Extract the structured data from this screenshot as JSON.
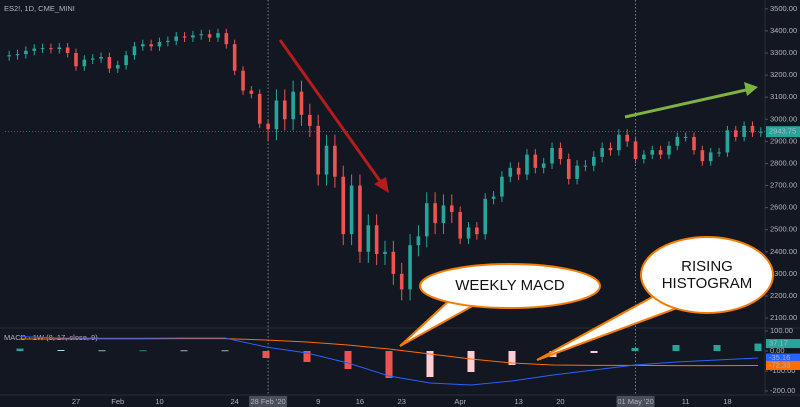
{
  "chart_data": [
    {
      "type": "candlestick",
      "title": "ES2!, 1D, CME_MINI",
      "categories": [
        null,
        null,
        null,
        null,
        null,
        null,
        null,
        null,
        "27",
        null,
        null,
        null,
        null,
        "Feb",
        null,
        null,
        null,
        null,
        "10",
        null,
        null,
        null,
        null,
        null,
        null,
        null,
        null,
        "24",
        null,
        null,
        null,
        "28 Feb '20",
        null,
        null,
        null,
        null,
        null,
        "9",
        null,
        null,
        null,
        null,
        "16",
        null,
        null,
        null,
        null,
        "23",
        null,
        null,
        null,
        null,
        null,
        null,
        "Apr",
        null,
        null,
        null,
        null,
        null,
        null,
        "13",
        null,
        null,
        null,
        null,
        "20",
        null,
        null,
        null,
        null,
        null,
        null,
        null,
        null,
        "01 May '20",
        null,
        null,
        null,
        null,
        null,
        "11",
        null,
        null,
        null,
        null,
        "18",
        null,
        null,
        null,
        null
      ],
      "open": [
        3285,
        3290,
        3295,
        3310,
        3320,
        3322,
        3318,
        3325,
        3300,
        3240,
        3270,
        3275,
        3282,
        3230,
        3245,
        3290,
        3330,
        3340,
        3330,
        3350,
        3355,
        3375,
        3370,
        3380,
        3385,
        3370,
        3390,
        3340,
        3220,
        3130,
        3115,
        2980,
        2955,
        3085,
        3000,
        3125,
        3020,
        2970,
        2750,
        2880,
        2740,
        2480,
        2700,
        2400,
        2520,
        2390,
        2400,
        2300,
        2230,
        2430,
        2470,
        2620,
        2530,
        2610,
        2580,
        2460,
        2510,
        2480,
        2640,
        2650,
        2740,
        2780,
        2750,
        2840,
        2780,
        2800,
        2870,
        2820,
        2730,
        2790,
        2790,
        2830,
        2870,
        2860,
        2930,
        2900,
        2820,
        2840,
        2860,
        2840,
        2880,
        2920,
        2920,
        2860,
        2810,
        2850,
        2850,
        2950,
        2920,
        2970,
        2940
      ],
      "high": [
        3310,
        3315,
        3330,
        3340,
        3342,
        3342,
        3345,
        3345,
        3320,
        3290,
        3295,
        3302,
        3302,
        3265,
        3310,
        3350,
        3360,
        3360,
        3370,
        3375,
        3395,
        3395,
        3400,
        3405,
        3405,
        3410,
        3410,
        3360,
        3240,
        3150,
        3135,
        3000,
        3135,
        3135,
        3175,
        3175,
        3070,
        3020,
        2930,
        2930,
        2790,
        2750,
        2750,
        2570,
        2570,
        2450,
        2450,
        2350,
        2480,
        2520,
        2670,
        2670,
        2660,
        2660,
        2605,
        2535,
        2535,
        2665,
        2675,
        2765,
        2805,
        2805,
        2865,
        2865,
        2825,
        2895,
        2895,
        2845,
        2815,
        2815,
        2855,
        2895,
        2895,
        2955,
        2955,
        2920,
        2860,
        2880,
        2880,
        2900,
        2940,
        2940,
        2940,
        2880,
        2870,
        2870,
        2970,
        2970,
        2990,
        2990,
        2963.75
      ],
      "low": [
        3265,
        3270,
        3275,
        3290,
        3300,
        3298,
        3298,
        3280,
        3220,
        3220,
        3250,
        3255,
        3210,
        3210,
        3225,
        3270,
        3310,
        3310,
        3310,
        3330,
        3335,
        3350,
        3350,
        3360,
        3350,
        3350,
        3320,
        3200,
        3110,
        3095,
        2960,
        2900,
        2905,
        2950,
        2950,
        2970,
        2920,
        2700,
        2700,
        2690,
        2430,
        2430,
        2350,
        2350,
        2340,
        2340,
        2250,
        2180,
        2180,
        2380,
        2420,
        2480,
        2480,
        2530,
        2435,
        2435,
        2455,
        2455,
        2615,
        2625,
        2715,
        2725,
        2725,
        2755,
        2755,
        2775,
        2795,
        2705,
        2705,
        2765,
        2765,
        2805,
        2835,
        2835,
        2875,
        2800,
        2800,
        2820,
        2820,
        2820,
        2860,
        2900,
        2840,
        2790,
        2790,
        2830,
        2830,
        2900,
        2900,
        2920,
        2920
      ],
      "close": [
        3290,
        3295,
        3310,
        3320,
        3322,
        3318,
        3325,
        3300,
        3240,
        3270,
        3275,
        3282,
        3230,
        3245,
        3290,
        3330,
        3340,
        3330,
        3350,
        3355,
        3375,
        3370,
        3380,
        3385,
        3370,
        3390,
        3340,
        3220,
        3130,
        3115,
        2980,
        2955,
        3085,
        3000,
        3125,
        3020,
        2970,
        2750,
        2880,
        2740,
        2480,
        2700,
        2400,
        2520,
        2390,
        2400,
        2300,
        2230,
        2430,
        2470,
        2620,
        2530,
        2610,
        2580,
        2460,
        2510,
        2480,
        2640,
        2650,
        2740,
        2780,
        2750,
        2840,
        2780,
        2800,
        2870,
        2820,
        2730,
        2790,
        2790,
        2830,
        2870,
        2860,
        2930,
        2900,
        2820,
        2840,
        2860,
        2840,
        2880,
        2920,
        2920,
        2860,
        2810,
        2850,
        2850,
        2950,
        2920,
        2970,
        2940,
        2943.75
      ],
      "up_color": "#26a69a",
      "down_color": "#ef5350",
      "ylim": [
        2055,
        3540
      ],
      "yticks": [
        {
          "value": 2100,
          "label": "2100.00"
        },
        {
          "value": 2200,
          "label": "2200.00"
        },
        {
          "value": 2300,
          "label": "2300.00"
        },
        {
          "value": 2400,
          "label": "2400.00"
        },
        {
          "value": 2500,
          "label": "2500.00"
        },
        {
          "value": 2600,
          "label": "2600.00"
        },
        {
          "value": 2700,
          "label": "2700.00"
        },
        {
          "value": 2800,
          "label": "2800.00"
        },
        {
          "value": 2900,
          "label": "2900.00"
        },
        {
          "value": 3000,
          "label": "3000.00"
        },
        {
          "value": 3100,
          "label": "3100.00"
        },
        {
          "value": 3200,
          "label": "3200.00"
        },
        {
          "value": 3300,
          "label": "3300.00"
        },
        {
          "value": 3400,
          "label": "3400.00"
        },
        {
          "value": 3500,
          "label": "3500.00"
        }
      ],
      "vlines": [
        31,
        75
      ],
      "annotations": [
        "WEEKLY MACD",
        "RISING HISTOGRAM"
      ]
    },
    {
      "type": "macd",
      "title": "MACD · 1W (8, 17, close, 9)",
      "histogram": {
        "values": [
          12,
          5,
          3,
          3,
          3,
          3,
          -35,
          -55,
          -90,
          -135,
          -130,
          -105,
          -70,
          -30,
          -10,
          15,
          30,
          30,
          37.17
        ],
        "colors": [
          "#26a69a",
          "#b2dfdb",
          "#b2dfdb",
          "#26a69a",
          "#b2dfdb",
          "#b2dfdb",
          "#ef5350",
          "#ef5350",
          "#ef5350",
          "#ef5350",
          "#ffcdd2",
          "#ffcdd2",
          "#ffcdd2",
          "#ffcdd2",
          "#ffcdd2",
          "#26a69a",
          "#26a69a",
          "#26a69a",
          "#26a69a"
        ]
      },
      "macd": {
        "color": "#2962ff",
        "values": [
          72,
          65,
          64,
          64,
          65,
          65,
          20,
          -10,
          -60,
          -125,
          -160,
          -170,
          -150,
          -120,
          -95,
          -70,
          -55,
          -45,
          -35.16
        ]
      },
      "signal": {
        "color": "#ff6d00",
        "values": [
          60,
          60,
          61,
          61,
          62,
          62,
          55,
          45,
          30,
          10,
          -15,
          -40,
          -60,
          -70,
          -72,
          -72,
          -73,
          -73,
          -72.33
        ]
      },
      "ylim": [
        -220,
        115
      ],
      "yticks": [
        {
          "value": 100,
          "label": "100.00"
        },
        {
          "value": 0,
          "label": "0.00"
        },
        {
          "value": -100,
          "label": "-100.00"
        },
        {
          "value": -200,
          "label": "-200.00"
        }
      ]
    }
  ]
}
